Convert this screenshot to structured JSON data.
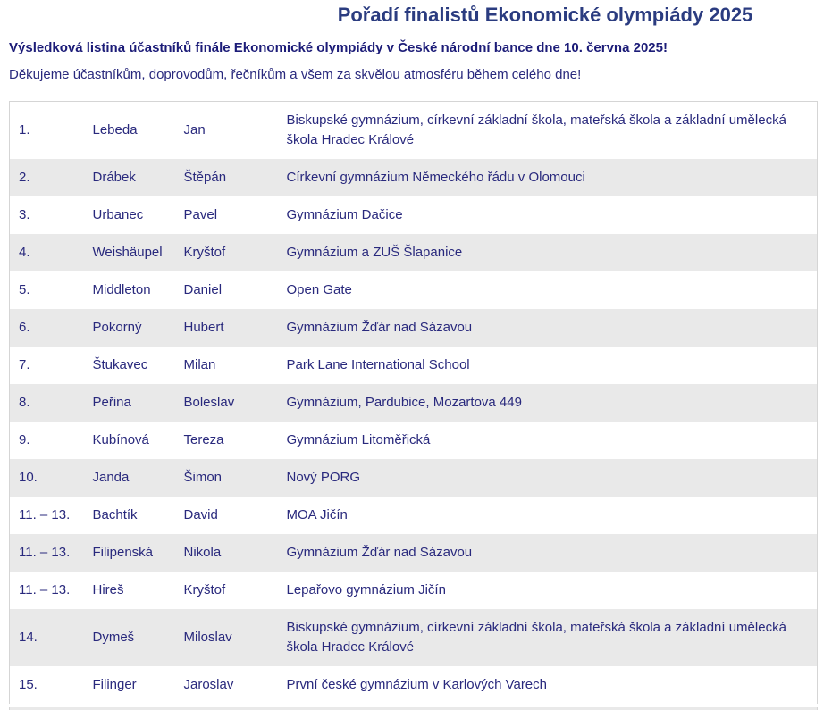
{
  "header": {
    "title": "Pořadí finalistů Ekonomické olympiády 2025",
    "subtitle": "Výsledková listina účastníků finále Ekonomické olympiády v České národní bance dne 10. června 2025!",
    "intro": "Děkujeme účastníkům, doprovodům, řečníkům a všem za skvělou atmosféru během celého dne!"
  },
  "colors": {
    "title_text": "#2b3c80",
    "subtitle_text": "#1c1c78",
    "body_text": "#29297d",
    "row_alt_bg": "#e9e9e9",
    "table_border": "#d5d5d5",
    "page_bg": "#ffffff"
  },
  "table": {
    "rows": [
      {
        "rank": "1.",
        "surname": "Lebeda",
        "first_name": "Jan",
        "school": "Biskupské gymnázium, církevní základní škola, mateřská škola a základní umělecká škola Hradec Králové"
      },
      {
        "rank": "2.",
        "surname": "Drábek",
        "first_name": "Štěpán",
        "school": "Církevní gymnázium Německého řádu v Olomouci"
      },
      {
        "rank": "3.",
        "surname": "Urbanec",
        "first_name": "Pavel",
        "school": "Gymnázium Dačice"
      },
      {
        "rank": "4.",
        "surname": "Weishäupel",
        "first_name": "Kryštof",
        "school": "Gymnázium a ZUŠ Šlapanice"
      },
      {
        "rank": "5.",
        "surname": "Middleton",
        "first_name": "Daniel",
        "school": "Open Gate"
      },
      {
        "rank": "6.",
        "surname": "Pokorný",
        "first_name": "Hubert",
        "school": "Gymnázium Žďár nad Sázavou"
      },
      {
        "rank": "7.",
        "surname": "Štukavec",
        "first_name": "Milan",
        "school": "Park Lane International School"
      },
      {
        "rank": "8.",
        "surname": "Peřina",
        "first_name": "Boleslav",
        "school": "Gymnázium, Pardubice, Mozartova 449"
      },
      {
        "rank": "9.",
        "surname": "Kubínová",
        "first_name": "Tereza",
        "school": "Gymnázium Litoměřická"
      },
      {
        "rank": "10.",
        "surname": "Janda",
        "first_name": "Šimon",
        "school": "Nový PORG"
      },
      {
        "rank": "11. – 13.",
        "surname": "Bachtík",
        "first_name": "David",
        "school": "MOA Jičín"
      },
      {
        "rank": "11. – 13.",
        "surname": "Filipenská",
        "first_name": "Nikola",
        "school": "Gymnázium Žďár nad Sázavou"
      },
      {
        "rank": "11. – 13.",
        "surname": "Hireš",
        "first_name": "Kryštof",
        "school": "Lepařovo gymnázium Jičín"
      },
      {
        "rank": "14.",
        "surname": "Dymeš",
        "first_name": "Miloslav",
        "school": "Biskupské gymnázium, církevní základní škola, mateřská škola a základní umělecká škola Hradec Králové"
      },
      {
        "rank": "15.",
        "surname": "Filinger",
        "first_name": "Jaroslav",
        "school": "První české gymnázium v Karlových Varech"
      }
    ]
  }
}
